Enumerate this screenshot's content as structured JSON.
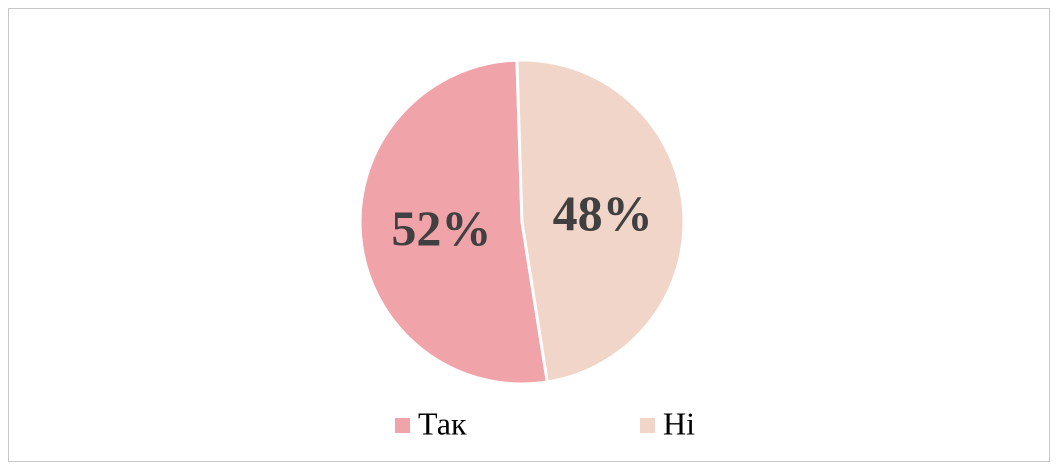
{
  "chart_data": {
    "type": "pie",
    "categories": [
      "Так",
      "Ні"
    ],
    "values": [
      52,
      48
    ],
    "value_labels": [
      "52%",
      "48%"
    ],
    "colors": [
      "#f0a3a8",
      "#f0d5c8"
    ],
    "startangle": 171,
    "legend": "bottom"
  }
}
